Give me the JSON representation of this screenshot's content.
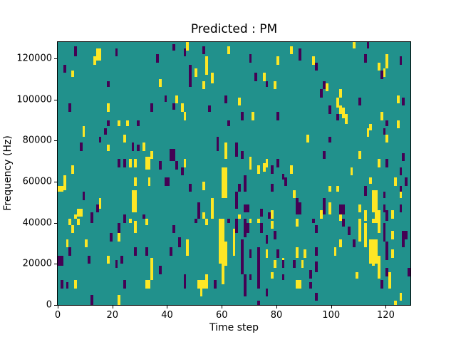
{
  "figure": {
    "background": "#ffffff"
  },
  "chart_data": {
    "type": "heatmap",
    "title": "Predicted : PM",
    "xlabel": "Time step",
    "ylabel": "Frequency (Hz)",
    "xlim": [
      0,
      129
    ],
    "ylim_hz": [
      0,
      128000
    ],
    "grid": false,
    "legend": "none",
    "xticks": [
      0,
      20,
      40,
      60,
      80,
      100,
      120
    ],
    "xtick_labels": [
      "0",
      "20",
      "40",
      "60",
      "80",
      "100",
      "120"
    ],
    "yticks_hz": [
      0,
      20000,
      40000,
      60000,
      80000,
      100000,
      120000
    ],
    "ytick_labels": [
      "0",
      "20000",
      "40000",
      "60000",
      "80000",
      "100000",
      "120000"
    ],
    "colors": {
      "background": "#21918c",
      "high": "#fde725",
      "low": "#440154",
      "spine": "#000000",
      "text": "#000000"
    },
    "cells_format": "[time_step, freq_lo_kHz, freq_hi_kHz, width_steps(optional, default 1)]",
    "cells": {
      "yellow": [
        [
          0,
          55,
          58,
          2
        ],
        [
          14,
          119,
          125,
          2
        ],
        [
          13,
          117,
          121
        ],
        [
          5,
          111,
          114
        ],
        [
          37,
          106,
          110
        ],
        [
          18,
          94,
          98
        ],
        [
          22,
          87,
          90
        ],
        [
          25,
          87,
          90
        ],
        [
          9,
          82,
          87
        ],
        [
          47,
          124,
          128
        ],
        [
          62,
          122,
          126
        ],
        [
          85,
          122,
          126
        ],
        [
          80,
          117,
          121
        ],
        [
          54,
          112,
          121
        ],
        [
          50,
          111,
          115
        ],
        [
          56,
          108,
          113
        ],
        [
          75,
          109,
          113
        ],
        [
          53,
          105,
          109
        ],
        [
          79,
          105,
          109
        ],
        [
          66,
          97,
          101
        ],
        [
          43,
          98,
          102
        ],
        [
          45,
          94,
          98
        ],
        [
          46,
          90,
          94
        ],
        [
          71,
          90,
          94
        ],
        [
          108,
          125,
          128
        ],
        [
          93,
          117,
          121
        ],
        [
          120,
          115,
          122
        ],
        [
          119,
          111,
          115
        ],
        [
          117,
          114,
          118
        ],
        [
          98,
          104,
          108
        ],
        [
          103,
          101,
          105
        ],
        [
          102,
          96,
          101
        ],
        [
          124,
          98,
          102
        ],
        [
          103,
          93,
          97
        ],
        [
          104,
          91,
          96
        ],
        [
          105,
          88,
          93
        ],
        [
          118,
          90,
          94
        ],
        [
          124,
          86,
          90
        ],
        [
          114,
          85,
          88
        ],
        [
          24,
          79,
          83
        ],
        [
          18,
          75,
          78
        ],
        [
          31,
          75,
          79
        ],
        [
          34,
          71,
          75
        ],
        [
          26,
          67,
          71
        ],
        [
          28,
          67,
          71
        ],
        [
          32,
          66,
          72,
          2
        ],
        [
          5,
          64,
          68
        ],
        [
          2,
          56,
          63
        ],
        [
          28,
          58,
          62
        ],
        [
          33,
          58,
          62
        ],
        [
          27,
          45,
          56,
          2
        ],
        [
          15,
          47,
          52
        ],
        [
          7,
          43,
          47,
          2
        ],
        [
          6,
          42,
          44
        ],
        [
          61,
          71,
          79
        ],
        [
          46,
          67,
          71
        ],
        [
          70,
          66,
          72
        ],
        [
          73,
          64,
          68
        ],
        [
          75,
          65,
          69
        ],
        [
          76,
          67,
          71
        ],
        [
          85,
          64,
          68
        ],
        [
          60,
          52,
          67,
          2
        ],
        [
          53,
          56,
          60
        ],
        [
          56,
          42,
          52
        ],
        [
          53,
          42,
          45
        ],
        [
          78,
          42,
          46
        ],
        [
          66,
          42,
          44
        ],
        [
          86,
          52,
          56
        ],
        [
          113,
          82,
          86
        ],
        [
          91,
          79,
          83
        ],
        [
          120,
          79,
          83
        ],
        [
          110,
          71,
          75
        ],
        [
          117,
          67,
          71
        ],
        [
          107,
          63,
          67
        ],
        [
          114,
          59,
          62
        ],
        [
          123,
          58,
          62
        ],
        [
          99,
          55,
          58
        ],
        [
          102,
          55,
          58
        ],
        [
          115,
          45,
          56,
          2
        ],
        [
          125,
          52,
          55
        ],
        [
          99,
          44,
          50
        ],
        [
          110,
          45,
          49
        ],
        [
          96,
          42,
          46
        ],
        [
          103,
          41,
          45
        ],
        [
          112,
          41,
          46
        ],
        [
          116,
          42,
          46,
          2
        ],
        [
          122,
          42,
          46
        ],
        [
          4,
          39,
          42
        ],
        [
          7,
          39,
          42
        ],
        [
          26,
          40,
          42
        ],
        [
          28,
          38,
          41
        ],
        [
          32,
          39,
          42
        ],
        [
          5,
          35,
          39
        ],
        [
          28,
          35,
          39
        ],
        [
          22,
          31,
          35
        ],
        [
          3,
          28,
          32
        ],
        [
          10,
          28,
          32
        ],
        [
          18,
          20,
          24
        ],
        [
          34,
          12,
          23
        ],
        [
          6,
          8,
          12
        ],
        [
          32,
          8,
          12,
          2
        ],
        [
          22,
          0,
          5
        ],
        [
          59,
          20,
          42
        ],
        [
          60,
          10,
          42
        ],
        [
          61,
          19,
          31
        ],
        [
          54,
          39,
          42
        ],
        [
          70,
          40,
          42
        ],
        [
          73,
          40,
          42
        ],
        [
          78,
          37,
          41
        ],
        [
          64,
          24,
          37
        ],
        [
          47,
          24,
          32
        ],
        [
          76,
          23,
          27
        ],
        [
          82,
          19,
          23
        ],
        [
          79,
          18,
          22
        ],
        [
          87,
          23,
          27
        ],
        [
          51,
          8,
          12,
          4
        ],
        [
          54,
          12,
          15
        ],
        [
          52,
          4,
          8
        ],
        [
          78,
          13,
          16
        ],
        [
          87,
          8,
          12
        ],
        [
          87,
          38,
          42
        ],
        [
          110,
          31,
          42
        ],
        [
          115,
          40,
          42,
          2
        ],
        [
          117,
          35,
          42
        ],
        [
          112,
          28,
          40
        ],
        [
          103,
          28,
          32
        ],
        [
          114,
          20,
          32,
          3
        ],
        [
          122,
          32,
          36
        ],
        [
          87,
          24,
          28
        ],
        [
          90,
          23,
          27
        ],
        [
          101,
          24,
          28
        ],
        [
          115,
          19,
          23
        ],
        [
          117,
          13,
          24
        ],
        [
          122,
          23,
          27
        ],
        [
          89,
          18,
          22
        ],
        [
          109,
          13,
          16
        ],
        [
          121,
          8,
          16
        ],
        [
          88,
          8,
          12
        ],
        [
          125,
          2,
          6
        ],
        [
          123,
          0,
          2
        ]
      ],
      "purple": [
        [
          0,
          19,
          24,
          2
        ],
        [
          1,
          8,
          12
        ],
        [
          3,
          8,
          11
        ],
        [
          6,
          121,
          126
        ],
        [
          21,
          121,
          125
        ],
        [
          42,
          124,
          127
        ],
        [
          36,
          118,
          122
        ],
        [
          2,
          113,
          117
        ],
        [
          18,
          106,
          109
        ],
        [
          39,
          99,
          102
        ],
        [
          42,
          95,
          98
        ],
        [
          4,
          94,
          98
        ],
        [
          34,
          94,
          98
        ],
        [
          18,
          87,
          90
        ],
        [
          29,
          87,
          90
        ],
        [
          46,
          121,
          125
        ],
        [
          53,
          122,
          126
        ],
        [
          70,
          118,
          122
        ],
        [
          48,
          110,
          117
        ],
        [
          72,
          109,
          113
        ],
        [
          48,
          106,
          110
        ],
        [
          76,
          106,
          109
        ],
        [
          61,
          98,
          102
        ],
        [
          55,
          94,
          97
        ],
        [
          67,
          90,
          94
        ],
        [
          80,
          90,
          94
        ],
        [
          62,
          87,
          90
        ],
        [
          113,
          125,
          128
        ],
        [
          88,
          119,
          125
        ],
        [
          112,
          118,
          122
        ],
        [
          94,
          114,
          118
        ],
        [
          125,
          117,
          121
        ],
        [
          118,
          110,
          114
        ],
        [
          97,
          105,
          109
        ],
        [
          96,
          101,
          105
        ],
        [
          110,
          97,
          101
        ],
        [
          126,
          97,
          101
        ],
        [
          99,
          93,
          97
        ],
        [
          102,
          90,
          93
        ],
        [
          120,
          87,
          90
        ],
        [
          17,
          83,
          86
        ],
        [
          15,
          79,
          82
        ],
        [
          8,
          75,
          79
        ],
        [
          27,
          75,
          79
        ],
        [
          29,
          75,
          78
        ],
        [
          41,
          70,
          76,
          2
        ],
        [
          22,
          67,
          71
        ],
        [
          24,
          67,
          71
        ],
        [
          37,
          66,
          70
        ],
        [
          39,
          58,
          62,
          2
        ],
        [
          9,
          51,
          55
        ],
        [
          14,
          45,
          49
        ],
        [
          12,
          42,
          45
        ],
        [
          24,
          42,
          44
        ],
        [
          31,
          42,
          44
        ],
        [
          58,
          75,
          82
        ],
        [
          65,
          72,
          79
        ],
        [
          67,
          71,
          75
        ],
        [
          43,
          66,
          70
        ],
        [
          78,
          64,
          68
        ],
        [
          80,
          67,
          71
        ],
        [
          45,
          63,
          67
        ],
        [
          82,
          61,
          64
        ],
        [
          83,
          58,
          62
        ],
        [
          48,
          55,
          59
        ],
        [
          66,
          55,
          59
        ],
        [
          68,
          55,
          63
        ],
        [
          78,
          55,
          59
        ],
        [
          65,
          47,
          55
        ],
        [
          51,
          42,
          50
        ],
        [
          68,
          45,
          49,
          2
        ],
        [
          74,
          43,
          47
        ],
        [
          77,
          42,
          45
        ],
        [
          87,
          46,
          52
        ],
        [
          119,
          83,
          86
        ],
        [
          99,
          79,
          82
        ],
        [
          97,
          71,
          75
        ],
        [
          126,
          70,
          74
        ],
        [
          120,
          67,
          71
        ],
        [
          125,
          63,
          67
        ],
        [
          127,
          58,
          62
        ],
        [
          125,
          55,
          58
        ],
        [
          112,
          53,
          58
        ],
        [
          119,
          52,
          55
        ],
        [
          97,
          44,
          52
        ],
        [
          103,
          44,
          49,
          2
        ],
        [
          119,
          45,
          49
        ],
        [
          87,
          44,
          50,
          2
        ],
        [
          125,
          45,
          49
        ],
        [
          120,
          41,
          46
        ],
        [
          24,
          40,
          42
        ],
        [
          12,
          40,
          42
        ],
        [
          22,
          35,
          40
        ],
        [
          42,
          35,
          39
        ],
        [
          19,
          31,
          35
        ],
        [
          4,
          24,
          28
        ],
        [
          28,
          24,
          28
        ],
        [
          32,
          24,
          28
        ],
        [
          41,
          24,
          28
        ],
        [
          11,
          20,
          24
        ],
        [
          23,
          20,
          24
        ],
        [
          21,
          18,
          22
        ],
        [
          37,
          15,
          19
        ],
        [
          24,
          8,
          12
        ],
        [
          12,
          0,
          5
        ],
        [
          50,
          40,
          42
        ],
        [
          62,
          40,
          42
        ],
        [
          65,
          35,
          42
        ],
        [
          68,
          33,
          42
        ],
        [
          69,
          35,
          40
        ],
        [
          74,
          35,
          40
        ],
        [
          79,
          32,
          36
        ],
        [
          76,
          30,
          34
        ],
        [
          44,
          28,
          33
        ],
        [
          67,
          15,
          32
        ],
        [
          70,
          23,
          27
        ],
        [
          73,
          8,
          28
        ],
        [
          73,
          0,
          2
        ],
        [
          80,
          23,
          27
        ],
        [
          82,
          18,
          22
        ],
        [
          86,
          18,
          22
        ],
        [
          46,
          8,
          15
        ],
        [
          57,
          8,
          12
        ],
        [
          68,
          4,
          15
        ],
        [
          70,
          12,
          15
        ],
        [
          76,
          4,
          8
        ],
        [
          82,
          12,
          15
        ],
        [
          93,
          40,
          42
        ],
        [
          104,
          38,
          42
        ],
        [
          119,
          31,
          40
        ],
        [
          94,
          35,
          39
        ],
        [
          106,
          34,
          38
        ],
        [
          126,
          32,
          36,
          2
        ],
        [
          108,
          28,
          32
        ],
        [
          126,
          28,
          32
        ],
        [
          94,
          24,
          28
        ],
        [
          120,
          22,
          31
        ],
        [
          94,
          16,
          21
        ],
        [
          92,
          13,
          17
        ],
        [
          120,
          14,
          18
        ],
        [
          128,
          14,
          18
        ],
        [
          118,
          8,
          12
        ],
        [
          92,
          8,
          11
        ],
        [
          94,
          2,
          6
        ]
      ]
    }
  }
}
